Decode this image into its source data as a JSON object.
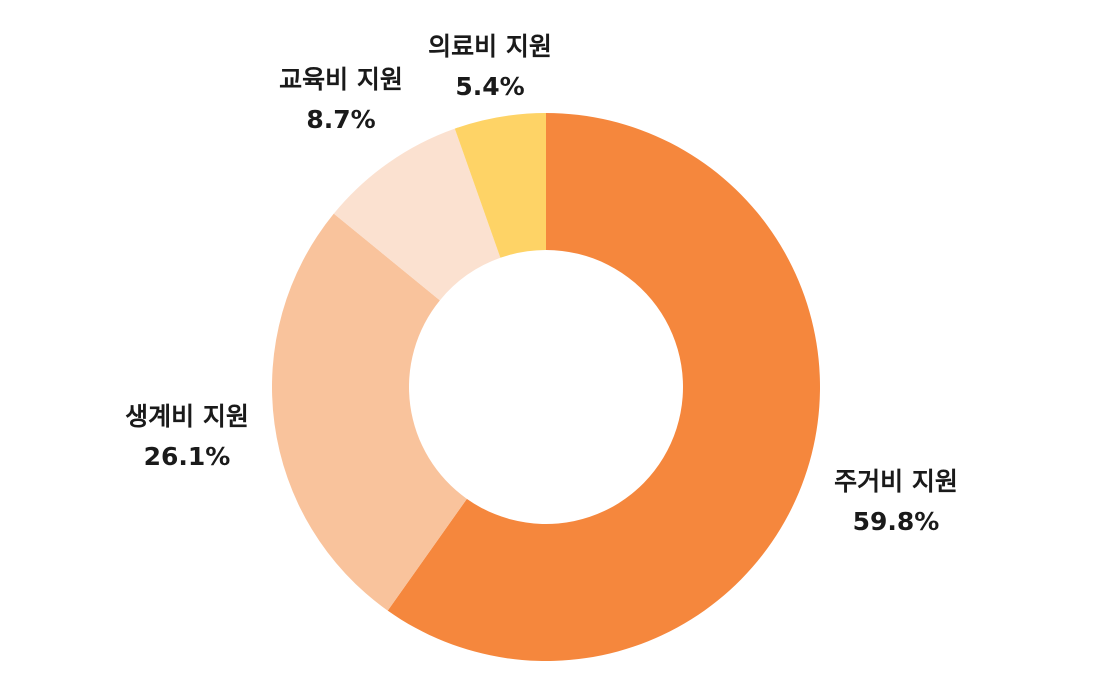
{
  "chart_data": {
    "type": "pie",
    "variant": "donut",
    "categories": [
      "주거비 지원",
      "생계비 지원",
      "교육비 지원",
      "의료비 지원"
    ],
    "values": [
      59.8,
      26.1,
      8.7,
      5.4
    ],
    "value_labels": [
      "59.8%",
      "26.1%",
      "8.7%",
      "5.4%"
    ],
    "unit": "%",
    "colors": [
      "#f5873d",
      "#f9c39c",
      "#fbe1d0",
      "#fed366"
    ],
    "start_angle": "12 o'clock",
    "direction": "clockwise",
    "legend": "none",
    "title": ""
  }
}
